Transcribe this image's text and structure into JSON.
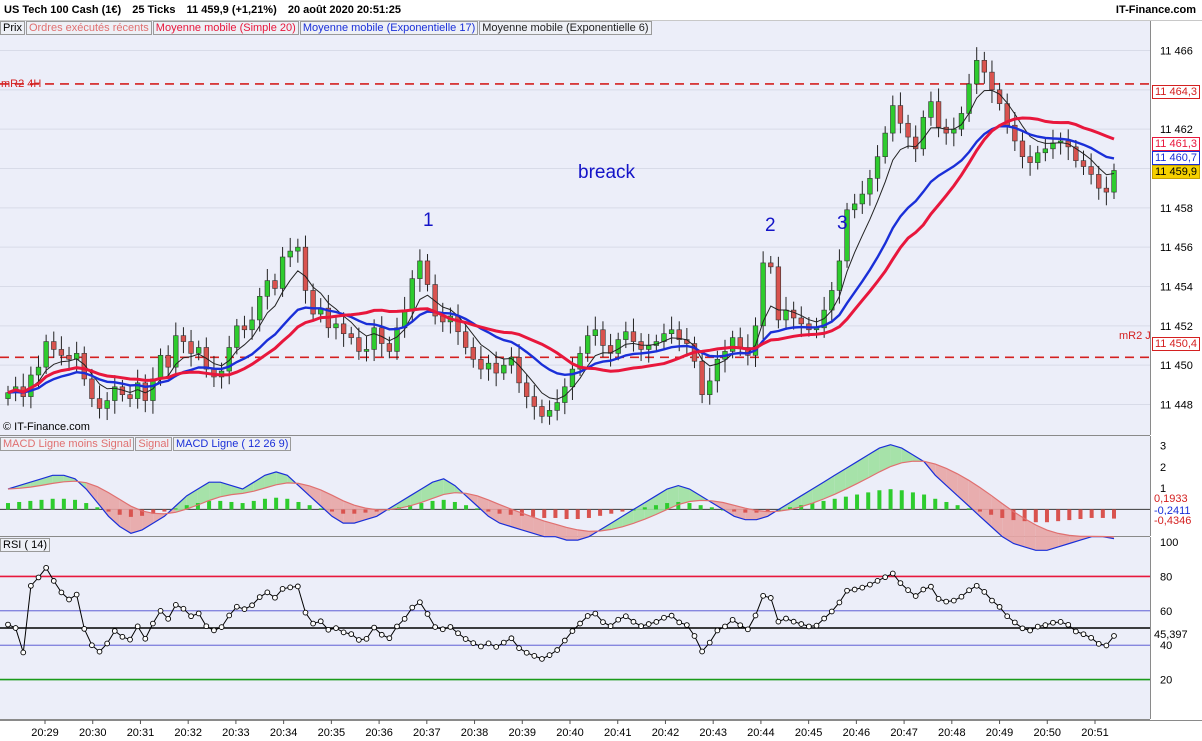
{
  "header": {
    "instrument": "US Tech 100 Cash (1€)",
    "ticks": "25 Ticks",
    "quote": "11 459,9 (+1,21%)",
    "datetime": "20 août 2020 20:51:25",
    "brand": "IT-Finance.com"
  },
  "legend": {
    "price": "Prix",
    "orders": "Ordres exécutés récents",
    "sma": "Moyenne mobile (Simple 20)",
    "ema17": "Moyenne mobile (Exponentielle 17)",
    "ema6": "Moyenne mobile (Exponentielle 6)"
  },
  "copyright": "© IT-Finance.com",
  "levels": {
    "r2_4h_label": "mR2 4H",
    "r2_4h_value": "11 464,3",
    "r2_j_label": "mR2 J",
    "r2_j_value": "11 450,4"
  },
  "tags": {
    "sma": "11 461,3",
    "ema17": "11 460,7",
    "last": "11 459,9"
  },
  "annotations": {
    "breack": "breack",
    "n1": "1",
    "n2": "2",
    "n3": "3"
  },
  "macd": {
    "legend_hist": "MACD Ligne moins Signal",
    "legend_signal": "Signal",
    "legend_line": "MACD Ligne ( 12 26 9)",
    "v1": "0,1933",
    "v2": "-0,2411",
    "v3": "-0,4346",
    "ticks": [
      "3",
      "2",
      "1"
    ]
  },
  "rsi": {
    "legend": "RSI ( 14)",
    "value": "45,397",
    "ticks": [
      "100",
      "80",
      "60",
      "40",
      "20"
    ]
  },
  "colors": {
    "up": "#2ecc2e",
    "down": "#d9534f",
    "sma": "#e8173c",
    "ema17": "#1a2fd8",
    "ema6": "#222222",
    "level": "#d42020"
  },
  "chart_data": [
    {
      "type": "candlestick",
      "title": "US Tech 100 Cash (1€) 25 Ticks",
      "ylim": [
        11446.5,
        11467.5
      ],
      "yticks": [
        11448,
        11450,
        11452,
        11454,
        11456,
        11458,
        11460,
        11462,
        11464,
        11466
      ],
      "ytick_labels": [
        "11 448",
        "11 450",
        "11 452",
        "11 454",
        "11 456",
        "11 458",
        "11 460",
        "11 462",
        "11 464",
        "11 466"
      ],
      "x_labels": [
        "20:29",
        "20:30",
        "20:31",
        "20:32",
        "20:33",
        "20:34",
        "20:35",
        "20:36",
        "20:37",
        "20:38",
        "20:39",
        "20:40",
        "20:41",
        "20:42",
        "20:43",
        "20:44",
        "20:45",
        "20:46",
        "20:47",
        "20:48",
        "20:49",
        "20:50",
        "20:51"
      ],
      "close": [
        11448.6,
        11448.9,
        11448.4,
        11449.5,
        11449.9,
        11451.2,
        11450.8,
        11450.5,
        11450.3,
        11450.6,
        11449.3,
        11448.3,
        11447.8,
        11448.2,
        11448.9,
        11448.5,
        11448.3,
        11449.1,
        11448.2,
        11449.3,
        11450.5,
        11449.9,
        11451.5,
        11451.2,
        11450.6,
        11450.9,
        11449.8,
        11449.4,
        11449.7,
        11450.9,
        11452.0,
        11451.8,
        11452.3,
        11453.5,
        11454.3,
        11453.9,
        11455.5,
        11455.8,
        11456.0,
        11453.8,
        11452.6,
        11452.9,
        11451.9,
        11452.1,
        11451.6,
        11451.4,
        11450.7,
        11450.8,
        11451.9,
        11451.1,
        11450.7,
        11451.9,
        11452.8,
        11454.4,
        11455.3,
        11454.1,
        11452.5,
        11452.2,
        11452.5,
        11451.7,
        11450.9,
        11450.3,
        11449.8,
        11450.1,
        11449.6,
        11450.0,
        11450.4,
        11449.1,
        11448.4,
        11447.9,
        11447.4,
        11447.7,
        11448.1,
        11448.9,
        11449.8,
        11450.6,
        11451.5,
        11451.8,
        11451.0,
        11450.6,
        11451.3,
        11451.7,
        11451.2,
        11450.8,
        11451.0,
        11451.2,
        11451.6,
        11451.8,
        11451.3,
        11451.1,
        11450.2,
        11448.5,
        11449.2,
        11450.3,
        11450.7,
        11451.4,
        11450.9,
        11450.5,
        11452.0,
        11455.2,
        11455.0,
        11452.3,
        11452.8,
        11452.4,
        11452.1,
        11451.8,
        11451.9,
        11452.8,
        11453.8,
        11455.3,
        11457.9,
        11458.2,
        11458.7,
        11459.5,
        11460.6,
        11461.8,
        11463.2,
        11462.3,
        11461.6,
        11461.0,
        11462.6,
        11463.4,
        11462.1,
        11461.8,
        11462.0,
        11462.8,
        11464.3,
        11465.5,
        11464.9,
        11464.0,
        11463.3,
        11462.2,
        11461.4,
        11460.6,
        11460.3,
        11460.8,
        11461.0,
        11461.3,
        11461.4,
        11461.1,
        11460.4,
        11460.1,
        11459.7,
        11459.0,
        11458.8,
        11459.9
      ],
      "series": [
        {
          "name": "Moyenne mobile (Simple 20)",
          "last": 11461.3
        },
        {
          "name": "Moyenne mobile (Exponentielle 17)",
          "last": 11460.7
        },
        {
          "name": "Moyenne mobile (Exponentielle 6)"
        }
      ],
      "levels": [
        {
          "name": "mR2 4H",
          "value": 11464.3
        },
        {
          "name": "mR2 J",
          "value": 11450.4
        }
      ],
      "annotations": [
        "breack",
        "1",
        "2",
        "3"
      ]
    },
    {
      "type": "bar",
      "title": "MACD Ligne ( 12 26 9)",
      "ylim": [
        -1.2,
        3.4
      ],
      "yticks": [
        1,
        2,
        3
      ],
      "last_values": {
        "macd": 0.1933,
        "signal": -0.2411,
        "hist": -0.4346
      },
      "hist_approx": [
        0.3,
        0.35,
        0.4,
        0.45,
        0.5,
        0.5,
        0.45,
        0.3,
        0.1,
        -0.1,
        -0.25,
        -0.35,
        -0.3,
        -0.2,
        -0.1,
        0.05,
        0.2,
        0.3,
        0.4,
        0.4,
        0.35,
        0.3,
        0.4,
        0.5,
        0.55,
        0.5,
        0.35,
        0.2,
        0.05,
        -0.1,
        -0.2,
        -0.2,
        -0.15,
        -0.1,
        0.0,
        0.1,
        0.2,
        0.3,
        0.4,
        0.45,
        0.35,
        0.2,
        0.05,
        -0.1,
        -0.2,
        -0.25,
        -0.3,
        -0.35,
        -0.4,
        -0.4,
        -0.45,
        -0.45,
        -0.4,
        -0.3,
        -0.2,
        -0.1,
        0.0,
        0.1,
        0.2,
        0.3,
        0.35,
        0.3,
        0.2,
        0.1,
        0.0,
        -0.1,
        -0.15,
        -0.15,
        -0.1,
        0.0,
        0.1,
        0.2,
        0.3,
        0.4,
        0.5,
        0.6,
        0.7,
        0.8,
        0.9,
        0.95,
        0.9,
        0.8,
        0.7,
        0.5,
        0.35,
        0.2,
        0.05,
        -0.1,
        -0.25,
        -0.4,
        -0.5,
        -0.55,
        -0.6,
        -0.6,
        -0.55,
        -0.5,
        -0.45,
        -0.4,
        -0.4,
        -0.43
      ]
    },
    {
      "type": "line",
      "title": "RSI ( 14)",
      "ylim": [
        0,
        100
      ],
      "yticks": [
        20,
        40,
        60,
        80,
        100
      ],
      "reference_lines": [
        20,
        40,
        50,
        60,
        80
      ],
      "last": 45.397
    }
  ]
}
